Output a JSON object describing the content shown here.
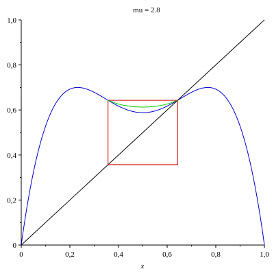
{
  "chart_data": {
    "type": "line",
    "title": "mu = 2.8",
    "xlabel": "x",
    "ylabel": "",
    "xlim": [
      0,
      1
    ],
    "ylim": [
      0,
      1
    ],
    "x_ticks": [
      0,
      0.2,
      0.4,
      0.6,
      0.8,
      1.0
    ],
    "x_tick_labels": [
      "0",
      "0,2",
      "0,4",
      "0,6",
      "0,8",
      "1,0"
    ],
    "y_ticks": [
      0,
      0.2,
      0.4,
      0.6,
      0.8,
      1.0
    ],
    "y_tick_labels": [
      "0",
      "0,2",
      "0,4",
      "0,6",
      "0,8",
      "1,0"
    ],
    "grid": false,
    "legend": false,
    "colors": {
      "second_iterate": "#0000cc",
      "diagonal": "#000000",
      "box": "#cc0000",
      "detail_curve": "#00cc00"
    },
    "series": [
      {
        "function": "f(f(x))",
        "mu": 2.8,
        "color_key": "second_iterate",
        "x_range": [
          0,
          1
        ],
        "samples": 400
      },
      {
        "function": "y = x",
        "color_key": "diagonal",
        "x": [
          0,
          1
        ],
        "y": [
          0,
          1
        ]
      },
      {
        "function": "red box",
        "color_key": "box",
        "x": [
          0.357,
          0.643,
          0.643,
          0.357,
          0.357
        ],
        "y": [
          0.357,
          0.357,
          0.643,
          0.643,
          0.357
        ]
      },
      {
        "function": "green curve",
        "color_key": "detail_curve",
        "x": [
          0.357,
          0.4,
          0.45,
          0.5,
          0.55,
          0.6,
          0.643
        ],
        "y": [
          0.643,
          0.625,
          0.615,
          0.612,
          0.615,
          0.625,
          0.643
        ]
      }
    ]
  }
}
